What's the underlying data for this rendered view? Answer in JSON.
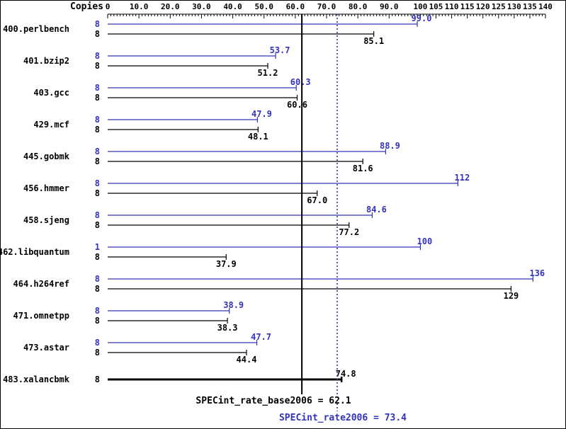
{
  "chart_data": {
    "type": "bar",
    "orientation": "horizontal",
    "axis": {
      "label": "Copies",
      "min": 0,
      "max": 140,
      "tick_values": [
        0,
        10,
        20,
        30,
        40,
        50,
        60,
        70,
        80,
        90,
        100,
        105,
        110,
        115,
        120,
        125,
        130,
        135,
        140
      ],
      "tick_labels": [
        "0",
        "10.0",
        "20.0",
        "30.0",
        "40.0",
        "50.0",
        "60.0",
        "70.0",
        "80.0",
        "90.0",
        "100",
        "105",
        "110",
        "115",
        "120",
        "125",
        "130",
        "135",
        "140"
      ]
    },
    "series_colors": {
      "peak": "#3333bb",
      "base": "#000000"
    },
    "benchmarks": [
      {
        "name": "400.perlbench",
        "bars": [
          {
            "series": "peak",
            "copies": "8",
            "value": 99.0,
            "label": "99.0"
          },
          {
            "series": "base",
            "copies": "8",
            "value": 85.1,
            "label": "85.1"
          }
        ]
      },
      {
        "name": "401.bzip2",
        "bars": [
          {
            "series": "peak",
            "copies": "8",
            "value": 53.7,
            "label": "53.7"
          },
          {
            "series": "base",
            "copies": "8",
            "value": 51.2,
            "label": "51.2"
          }
        ]
      },
      {
        "name": "403.gcc",
        "bars": [
          {
            "series": "peak",
            "copies": "8",
            "value": 60.3,
            "label": "60.3"
          },
          {
            "series": "base",
            "copies": "8",
            "value": 60.6,
            "label": "60.6"
          }
        ]
      },
      {
        "name": "429.mcf",
        "bars": [
          {
            "series": "peak",
            "copies": "8",
            "value": 47.9,
            "label": "47.9"
          },
          {
            "series": "base",
            "copies": "8",
            "value": 48.1,
            "label": "48.1"
          }
        ]
      },
      {
        "name": "445.gobmk",
        "bars": [
          {
            "series": "peak",
            "copies": "8",
            "value": 88.9,
            "label": "88.9"
          },
          {
            "series": "base",
            "copies": "8",
            "value": 81.6,
            "label": "81.6"
          }
        ]
      },
      {
        "name": "456.hmmer",
        "bars": [
          {
            "series": "peak",
            "copies": "8",
            "value": 112,
            "label": "112"
          },
          {
            "series": "base",
            "copies": "8",
            "value": 67.0,
            "label": "67.0"
          }
        ]
      },
      {
        "name": "458.sjeng",
        "bars": [
          {
            "series": "peak",
            "copies": "8",
            "value": 84.6,
            "label": "84.6"
          },
          {
            "series": "base",
            "copies": "8",
            "value": 77.2,
            "label": "77.2"
          }
        ]
      },
      {
        "name": "462.libquantum",
        "bars": [
          {
            "series": "peak",
            "copies": "1",
            "value": 100,
            "label": "100"
          },
          {
            "series": "base",
            "copies": "8",
            "value": 37.9,
            "label": "37.9"
          }
        ]
      },
      {
        "name": "464.h264ref",
        "bars": [
          {
            "series": "peak",
            "copies": "8",
            "value": 136,
            "label": "136"
          },
          {
            "series": "base",
            "copies": "8",
            "value": 129,
            "label": "129"
          }
        ]
      },
      {
        "name": "471.omnetpp",
        "bars": [
          {
            "series": "peak",
            "copies": "8",
            "value": 38.9,
            "label": "38.9"
          },
          {
            "series": "base",
            "copies": "8",
            "value": 38.3,
            "label": "38.3"
          }
        ]
      },
      {
        "name": "473.astar",
        "bars": [
          {
            "series": "peak",
            "copies": "8",
            "value": 47.7,
            "label": "47.7"
          },
          {
            "series": "base",
            "copies": "8",
            "value": 44.4,
            "label": "44.4"
          }
        ]
      },
      {
        "name": "483.xalancbmk",
        "bars": [
          {
            "series": "base",
            "copies": "8",
            "value": 74.8,
            "label": "74.8",
            "bold": true,
            "label_position": "above"
          }
        ]
      }
    ],
    "reference_lines": [
      {
        "label": "SPECint_rate_base2006 = 62.1",
        "value": 62.1,
        "style": "solid",
        "color": "#000000"
      },
      {
        "label": "SPECint_rate2006 = 73.4",
        "value": 73.4,
        "style": "dotted",
        "color": "#3333bb"
      }
    ]
  }
}
